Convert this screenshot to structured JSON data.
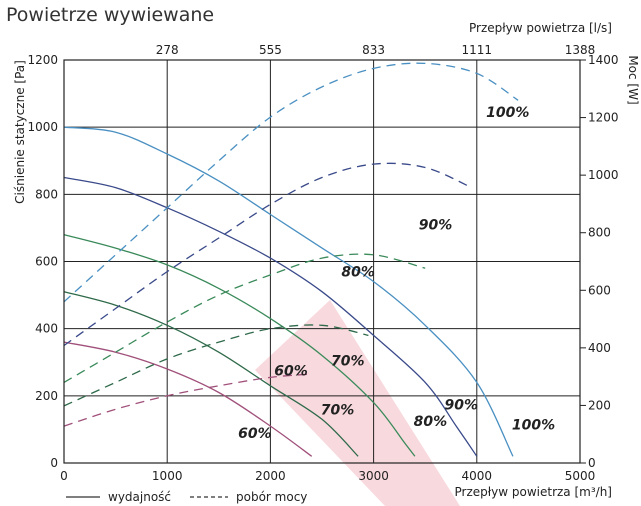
{
  "title": "Powietrze wywiewane",
  "chart_data": {
    "type": "line",
    "title": "Powietrze wywiewane",
    "xlabel": "Przepływ powietrza [m³/h]",
    "x2label": "Przepływ powietrza [l/s]",
    "ylabel": "Ciśnienie statyczne [Pa]",
    "y2label": "Moc [W]",
    "xlim": [
      0,
      5000
    ],
    "ylim": [
      0,
      1200
    ],
    "y2lim": [
      0,
      1400
    ],
    "xticks": [
      0,
      1000,
      2000,
      3000,
      4000,
      5000
    ],
    "yticks": [
      0,
      200,
      400,
      600,
      800,
      1000,
      1200
    ],
    "y2ticks": [
      0,
      200,
      400,
      600,
      800,
      1000,
      1200,
      1400
    ],
    "x2ticks": [
      "278",
      "555",
      "833",
      "1111",
      "1388"
    ],
    "grid": true,
    "legend": [
      {
        "label": "wydajność",
        "style": "solid"
      },
      {
        "label": "pobór mocy",
        "style": "dashed"
      }
    ],
    "pressure_series": [
      {
        "name": "100%",
        "color": "#4a90c2",
        "points": [
          [
            0,
            1000
          ],
          [
            500,
            985
          ],
          [
            1000,
            920
          ],
          [
            1500,
            840
          ],
          [
            2000,
            740
          ],
          [
            2500,
            640
          ],
          [
            3000,
            540
          ],
          [
            3500,
            410
          ],
          [
            4000,
            240
          ],
          [
            4350,
            20
          ]
        ]
      },
      {
        "name": "90%",
        "color": "#3a4a8a",
        "points": [
          [
            0,
            850
          ],
          [
            500,
            820
          ],
          [
            1000,
            760
          ],
          [
            1500,
            690
          ],
          [
            2000,
            610
          ],
          [
            2500,
            510
          ],
          [
            3000,
            380
          ],
          [
            3500,
            240
          ],
          [
            3800,
            110
          ],
          [
            4000,
            20
          ]
        ]
      },
      {
        "name": "80%",
        "color": "#3a8a5a",
        "points": [
          [
            0,
            680
          ],
          [
            500,
            640
          ],
          [
            1000,
            590
          ],
          [
            1500,
            520
          ],
          [
            2000,
            430
          ],
          [
            2500,
            320
          ],
          [
            3000,
            180
          ],
          [
            3300,
            60
          ],
          [
            3400,
            20
          ]
        ]
      },
      {
        "name": "70%",
        "color": "#2e6a4a",
        "points": [
          [
            0,
            510
          ],
          [
            500,
            470
          ],
          [
            1000,
            410
          ],
          [
            1500,
            330
          ],
          [
            2000,
            230
          ],
          [
            2500,
            130
          ],
          [
            2850,
            20
          ]
        ]
      },
      {
        "name": "60%",
        "color": "#a0507a",
        "points": [
          [
            0,
            360
          ],
          [
            500,
            330
          ],
          [
            1000,
            280
          ],
          [
            1500,
            210
          ],
          [
            2000,
            110
          ],
          [
            2400,
            20
          ]
        ]
      }
    ],
    "power_series": [
      {
        "name": "100%",
        "color": "#4a90c2",
        "points": [
          [
            0,
            480
          ],
          [
            500,
            620
          ],
          [
            1000,
            760
          ],
          [
            1500,
            900
          ],
          [
            2000,
            1030
          ],
          [
            2500,
            1120
          ],
          [
            3000,
            1175
          ],
          [
            3500,
            1190
          ],
          [
            4000,
            1160
          ],
          [
            4400,
            1080
          ]
        ]
      },
      {
        "name": "90%",
        "color": "#3a4a8a",
        "points": [
          [
            0,
            350
          ],
          [
            500,
            460
          ],
          [
            1000,
            570
          ],
          [
            1500,
            670
          ],
          [
            2000,
            770
          ],
          [
            2500,
            850
          ],
          [
            3000,
            890
          ],
          [
            3500,
            880
          ],
          [
            3950,
            820
          ]
        ]
      },
      {
        "name": "80%",
        "color": "#3a8a5a",
        "points": [
          [
            0,
            240
          ],
          [
            500,
            330
          ],
          [
            1000,
            420
          ],
          [
            1500,
            500
          ],
          [
            2000,
            560
          ],
          [
            2500,
            610
          ],
          [
            3000,
            620
          ],
          [
            3500,
            580
          ]
        ]
      },
      {
        "name": "70%",
        "color": "#2e6a4a",
        "points": [
          [
            0,
            170
          ],
          [
            500,
            240
          ],
          [
            1000,
            310
          ],
          [
            1500,
            360
          ],
          [
            2000,
            400
          ],
          [
            2500,
            410
          ],
          [
            2950,
            380
          ]
        ]
      },
      {
        "name": "60%",
        "color": "#a0507a",
        "points": [
          [
            0,
            110
          ],
          [
            500,
            160
          ],
          [
            1000,
            200
          ],
          [
            1500,
            230
          ],
          [
            2000,
            255
          ],
          [
            2400,
            265
          ]
        ]
      }
    ],
    "annotations": [
      {
        "text": "100%",
        "x": 4300,
        "y": 1030
      },
      {
        "text": "90%",
        "x": 3600,
        "y": 695
      },
      {
        "text": "80%",
        "x": 2850,
        "y": 555
      },
      {
        "text": "70%",
        "x": 2750,
        "y": 290
      },
      {
        "text": "60%",
        "x": 2200,
        "y": 260
      },
      {
        "text": "100%",
        "x": 4550,
        "y": 100
      },
      {
        "text": "90%",
        "x": 3850,
        "y": 160
      },
      {
        "text": "80%",
        "x": 3550,
        "y": 110
      },
      {
        "text": "70%",
        "x": 2650,
        "y": 145
      },
      {
        "text": "60%",
        "x": 1850,
        "y": 75
      }
    ]
  }
}
